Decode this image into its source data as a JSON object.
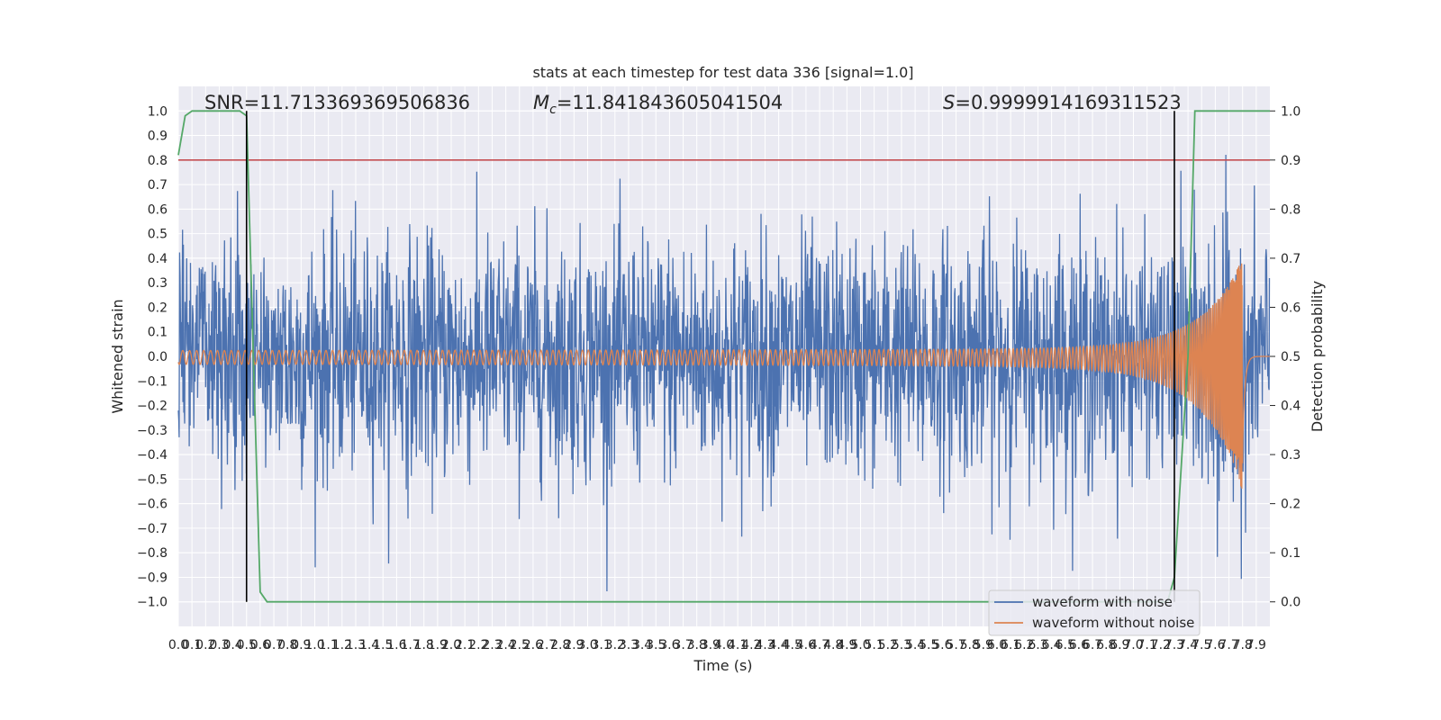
{
  "chart_data": {
    "type": "line",
    "title": "stats at each timestep for test data 336 [signal=1.0]",
    "xlabel": "Time (s)",
    "ylabel": "Whitened strain",
    "ylabel_right": "Detection probability",
    "xlim": [
      0,
      8
    ],
    "ylim": [
      -1.1,
      1.1
    ],
    "ylim_right": [
      -0.05,
      1.05
    ],
    "x_ticks": [
      "0.0",
      "0.1",
      "0.2",
      "0.3",
      "0.4",
      "0.5",
      "0.6",
      "0.7",
      "0.8",
      "0.9",
      "1.0",
      "1.1",
      "1.2",
      "1.3",
      "1.4",
      "1.5",
      "1.6",
      "1.7",
      "1.8",
      "1.9",
      "2.0",
      "2.1",
      "2.2",
      "2.3",
      "2.4",
      "2.5",
      "2.6",
      "2.7",
      "2.8",
      "2.9",
      "3.0",
      "3.1",
      "3.2",
      "3.3",
      "3.4",
      "3.5",
      "3.6",
      "3.7",
      "3.8",
      "3.9",
      "4.0",
      "4.1",
      "4.2",
      "4.3",
      "4.4",
      "4.5",
      "4.6",
      "4.7",
      "4.8",
      "4.9",
      "5.0",
      "5.1",
      "5.2",
      "5.3",
      "5.4",
      "5.5",
      "5.6",
      "5.7",
      "5.8",
      "5.9",
      "6.0",
      "6.1",
      "6.2",
      "6.3",
      "6.4",
      "6.5",
      "6.6",
      "6.7",
      "6.8",
      "6.9",
      "7.0",
      "7.1",
      "7.2",
      "7.3",
      "7.4",
      "7.5",
      "7.6",
      "7.7",
      "7.8",
      "7.9"
    ],
    "y_ticks": [
      "1.0",
      "0.9",
      "0.8",
      "0.7",
      "0.6",
      "0.5",
      "0.4",
      "0.3",
      "0.2",
      "0.1",
      "0.0",
      "−0.1",
      "−0.2",
      "−0.3",
      "−0.4",
      "−0.5",
      "−0.6",
      "−0.7",
      "−0.8",
      "−0.9",
      "−1.0"
    ],
    "y_ticks_right": [
      "1.0",
      "0.9",
      "0.8",
      "0.7",
      "0.6",
      "0.5",
      "0.4",
      "0.3",
      "0.2",
      "0.1",
      "0.0"
    ],
    "annotations": {
      "snr": "SNR=11.713369369506836",
      "mc_symbol": "M",
      "mc_sub": "c",
      "mc_value": "=11.841843605041504",
      "s_symbol": "S",
      "s_value": "=0.9999914169311523"
    },
    "series": [
      {
        "name": "waveform with noise",
        "color": "#4c72b0",
        "kind": "noise",
        "approx_envelope": [
          -0.95,
          0.88
        ],
        "length_s": 8
      },
      {
        "name": "waveform without noise",
        "color": "#dd8452",
        "kind": "chirp",
        "merger_time": 7.8,
        "peak_amplitude": 0.37,
        "min_amplitude": -0.52
      },
      {
        "name": "",
        "color": "#55a868",
        "axis": "right",
        "kind": "probability",
        "x": [
          0.0,
          0.05,
          0.1,
          0.2,
          0.45,
          0.5,
          0.55,
          0.6,
          0.65,
          7.25,
          7.3,
          7.4,
          7.45,
          8.0
        ],
        "y": [
          0.91,
          0.99,
          1.0,
          1.0,
          1.0,
          0.99,
          0.5,
          0.02,
          0.0,
          0.0,
          0.05,
          0.5,
          1.0,
          1.0
        ]
      }
    ],
    "threshold_line": {
      "color": "#c44e52",
      "value_right_axis": 0.9
    },
    "vertical_markers": [
      0.5,
      7.3
    ],
    "legend": {
      "position": "lower-right",
      "entries": [
        "waveform with noise",
        "waveform without noise"
      ]
    },
    "grid": true
  }
}
